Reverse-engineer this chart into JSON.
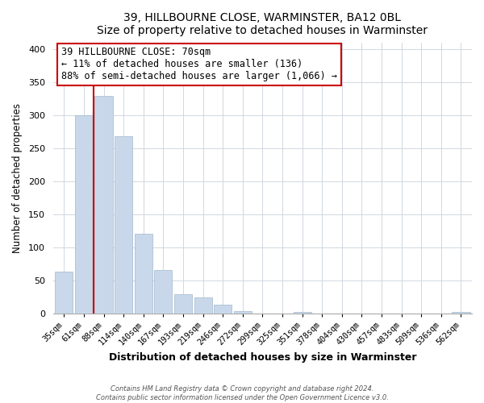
{
  "title": "39, HILLBOURNE CLOSE, WARMINSTER, BA12 0BL",
  "subtitle": "Size of property relative to detached houses in Warminster",
  "xlabel": "Distribution of detached houses by size in Warminster",
  "ylabel": "Number of detached properties",
  "bar_labels": [
    "35sqm",
    "61sqm",
    "88sqm",
    "114sqm",
    "140sqm",
    "167sqm",
    "193sqm",
    "219sqm",
    "246sqm",
    "272sqm",
    "299sqm",
    "325sqm",
    "351sqm",
    "378sqm",
    "404sqm",
    "430sqm",
    "457sqm",
    "483sqm",
    "509sqm",
    "536sqm",
    "562sqm"
  ],
  "bar_values": [
    63,
    300,
    330,
    268,
    120,
    65,
    29,
    24,
    13,
    3,
    0,
    0,
    2,
    0,
    0,
    0,
    0,
    0,
    0,
    0,
    2
  ],
  "bar_color": "#c8d8ea",
  "bar_edge_color": "#a0b8cc",
  "marker_color": "#cc0000",
  "annotation_line1": "39 HILLBOURNE CLOSE: 70sqm",
  "annotation_line2": "← 11% of detached houses are smaller (136)",
  "annotation_line3": "88% of semi-detached houses are larger (1,066) →",
  "annotation_box_edgecolor": "#cc0000",
  "ylim": [
    0,
    410
  ],
  "yticks": [
    0,
    50,
    100,
    150,
    200,
    250,
    300,
    350,
    400
  ],
  "footer_line1": "Contains HM Land Registry data © Crown copyright and database right 2024.",
  "footer_line2": "Contains public sector information licensed under the Open Government Licence v3.0.",
  "bg_color": "#ffffff",
  "grid_color": "#d0d8e0"
}
